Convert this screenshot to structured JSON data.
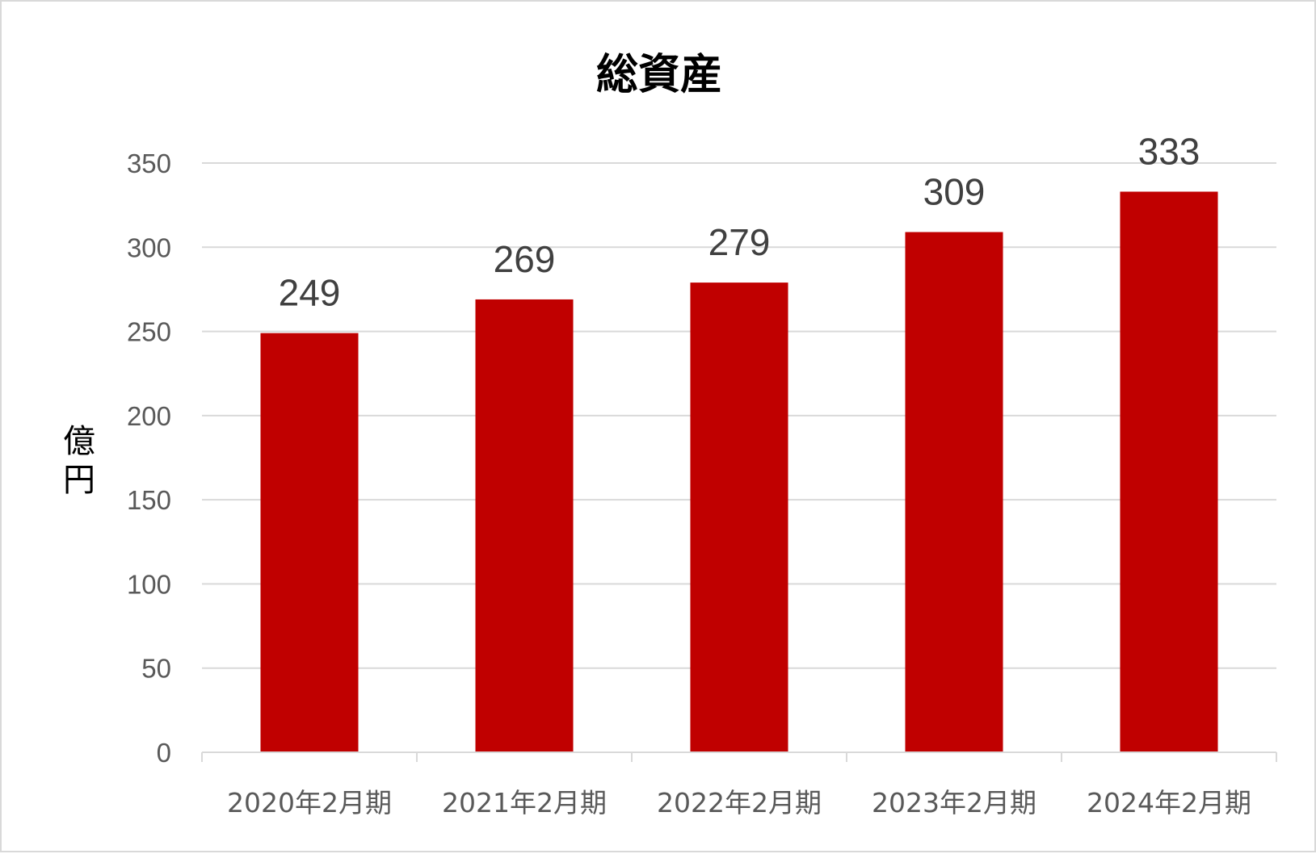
{
  "chart_data": {
    "type": "bar",
    "title": "総資産",
    "xlabel": "",
    "ylabel": "億円",
    "categories": [
      "2020年2月期",
      "2021年2月期",
      "2022年2月期",
      "2023年2月期",
      "2024年2月期"
    ],
    "values": [
      249,
      269,
      279,
      309,
      333
    ],
    "data_labels": [
      "249",
      "269",
      "279",
      "309",
      "333"
    ],
    "ylim": [
      0,
      350
    ],
    "yticks": [
      0,
      50,
      100,
      150,
      200,
      250,
      300,
      350
    ],
    "ytick_labels": [
      "0",
      "50",
      "100",
      "150",
      "200",
      "250",
      "300",
      "350"
    ],
    "grid": true,
    "legend": "none",
    "bar_color": "#C00000",
    "gridline_color": "#d9d9d9"
  }
}
